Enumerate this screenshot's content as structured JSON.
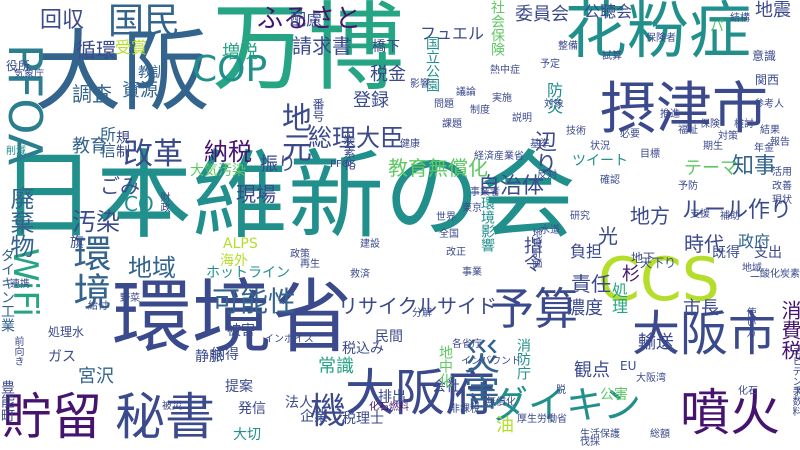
{
  "palette": {
    "dark_purple": "#46146e",
    "indigo": "#3b4a8c",
    "blue": "#33648e",
    "teal_blue": "#2b7e8e",
    "teal": "#21908c",
    "green": "#26a584",
    "light_green": "#5ec962",
    "lime": "#b5de2b"
  },
  "words": [
    {
      "text": "日本維新の会",
      "color": "teal"
    },
    {
      "text": "万博",
      "color": "green"
    },
    {
      "text": "大阪",
      "color": "blue"
    },
    {
      "text": "環境省",
      "color": "indigo"
    },
    {
      "text": "花粉症",
      "color": "teal"
    },
    {
      "text": "摂津市",
      "color": "indigo"
    },
    {
      "text": "CCS",
      "color": "lime"
    },
    {
      "text": "PFOA",
      "color": "teal_blue"
    },
    {
      "text": "大阪市",
      "color": "indigo"
    },
    {
      "text": "大阪府",
      "color": "indigo"
    },
    {
      "text": "貯留",
      "color": "dark_purple"
    },
    {
      "text": "秘書",
      "color": "indigo"
    },
    {
      "text": "噴火",
      "color": "dark_purple"
    },
    {
      "text": "予算",
      "color": "indigo"
    },
    {
      "text": "COP",
      "color": "teal"
    },
    {
      "text": "国民",
      "color": "blue"
    },
    {
      "text": "ダイキン",
      "color": "teal"
    },
    {
      "text": "環境",
      "color": "blue"
    },
    {
      "text": "WiFi",
      "color": "green"
    },
    {
      "text": "災害",
      "color": "blue"
    },
    {
      "text": "廃棄物",
      "color": "blue"
    },
    {
      "text": "地元",
      "color": "indigo"
    },
    {
      "text": "機",
      "color": "indigo"
    },
    {
      "text": "改革",
      "color": "indigo"
    },
    {
      "text": "可能性",
      "color": "blue"
    },
    {
      "text": "ふるさと",
      "color": "dark_purple"
    },
    {
      "text": "回収",
      "color": "indigo"
    },
    {
      "text": "総理大臣",
      "color": "indigo"
    },
    {
      "text": "地域",
      "color": "blue"
    },
    {
      "text": "納税",
      "color": "dark_purple"
    },
    {
      "text": "汚染",
      "color": "indigo"
    },
    {
      "text": "リサイクルサイド",
      "color": "indigo"
    },
    {
      "text": "ルール作り",
      "color": "indigo"
    },
    {
      "text": "自治体",
      "color": "indigo"
    },
    {
      "text": "教育無償化",
      "color": "light_green"
    },
    {
      "text": "CO",
      "color": "teal"
    },
    {
      "text": "責任",
      "color": "indigo"
    },
    {
      "text": "辺り",
      "color": "indigo"
    },
    {
      "text": "循環",
      "color": "indigo"
    },
    {
      "text": "ごみ",
      "color": "indigo"
    },
    {
      "text": "現場",
      "color": "indigo"
    },
    {
      "text": "時代",
      "color": "indigo"
    },
    {
      "text": "テーマ",
      "color": "light_green"
    },
    {
      "text": "地方",
      "color": "indigo"
    },
    {
      "text": "請求書",
      "color": "indigo"
    },
    {
      "text": "増税",
      "color": "green"
    },
    {
      "text": "調査",
      "color": "blue"
    },
    {
      "text": "知事",
      "color": "blue"
    },
    {
      "text": "光",
      "color": "indigo"
    },
    {
      "text": "宮沢",
      "color": "blue"
    },
    {
      "text": "輸送",
      "color": "indigo"
    },
    {
      "text": "市長",
      "color": "indigo"
    },
    {
      "text": "指令",
      "color": "indigo"
    },
    {
      "text": "消費税",
      "color": "dark_purple"
    },
    {
      "text": "観点",
      "color": "indigo"
    },
    {
      "text": "常識",
      "color": "green"
    },
    {
      "text": "振り",
      "color": "indigo"
    },
    {
      "text": "登録",
      "color": "indigo"
    },
    {
      "text": "資源",
      "color": "blue"
    },
    {
      "text": "教育",
      "color": "blue"
    },
    {
      "text": "委員会",
      "color": "indigo"
    },
    {
      "text": "税金",
      "color": "indigo"
    },
    {
      "text": "フュエル",
      "color": "indigo"
    },
    {
      "text": "社会保険",
      "color": "light_green"
    },
    {
      "text": "地震",
      "color": "indigo"
    },
    {
      "text": "公聴会",
      "color": "indigo"
    },
    {
      "text": "濃度",
      "color": "indigo"
    },
    {
      "text": "政府",
      "color": "blue"
    },
    {
      "text": "杉",
      "color": "dark_purple"
    },
    {
      "text": "大気汚染",
      "color": "light_green"
    },
    {
      "text": "受賞",
      "color": "lime"
    },
    {
      "text": "教訓",
      "color": "blue"
    },
    {
      "text": "配慮",
      "color": "indigo"
    },
    {
      "text": "橋下",
      "color": "indigo"
    },
    {
      "text": "所信",
      "color": "blue"
    },
    {
      "text": "規制",
      "color": "indigo"
    },
    {
      "text": "国立公園",
      "color": "teal"
    },
    {
      "text": "防災",
      "color": "teal"
    },
    {
      "text": "消防庁",
      "color": "teal"
    },
    {
      "text": "環境影響",
      "color": "teal"
    },
    {
      "text": "負担",
      "color": "indigo"
    },
    {
      "text": "処理",
      "color": "green"
    },
    {
      "text": "ダイキン工業",
      "color": "blue"
    },
    {
      "text": "豊能町",
      "color": "indigo"
    },
    {
      "text": "ホットライン",
      "color": "teal"
    },
    {
      "text": "ツイート",
      "color": "teal"
    },
    {
      "text": "ALPS",
      "color": "lime"
    },
    {
      "text": "ガス",
      "color": "indigo"
    },
    {
      "text": "旗",
      "color": "indigo"
    },
    {
      "text": "被害",
      "color": "indigo"
    },
    {
      "text": "提案",
      "color": "indigo"
    },
    {
      "text": "発信",
      "color": "indigo"
    },
    {
      "text": "大切",
      "color": "teal"
    },
    {
      "text": "税込み",
      "color": "indigo"
    },
    {
      "text": "税理士",
      "color": "indigo"
    },
    {
      "text": "企業",
      "color": "indigo"
    },
    {
      "text": "会社",
      "color": "indigo"
    },
    {
      "text": "民間",
      "color": "indigo"
    },
    {
      "text": "法人",
      "color": "indigo"
    },
    {
      "text": "公害",
      "color": "light_green"
    },
    {
      "text": "静脈",
      "color": "indigo"
    },
    {
      "text": "納得",
      "color": "indigo"
    },
    {
      "text": "排出",
      "color": "indigo"
    },
    {
      "text": "既得",
      "color": "indigo"
    },
    {
      "text": "支出",
      "color": "indigo"
    },
    {
      "text": "地中化",
      "color": "light_green"
    },
    {
      "text": "パ",
      "color": "light_green"
    },
    {
      "text": "役所",
      "color": "indigo"
    },
    {
      "text": "PFOS",
      "color": "indigo"
    },
    {
      "text": "インバウンド",
      "color": "indigo"
    },
    {
      "text": "インボイス",
      "color": "indigo"
    },
    {
      "text": "化石燃料",
      "color": "dark_purple"
    },
    {
      "text": "経済産業省",
      "color": "indigo"
    },
    {
      "text": "番号",
      "color": "indigo"
    },
    {
      "text": "炭素化",
      "color": "indigo"
    },
    {
      "text": "油",
      "color": "lime"
    },
    {
      "text": "海外",
      "color": "lime"
    },
    {
      "text": "EU",
      "color": "indigo"
    },
    {
      "text": "関西",
      "color": "indigo"
    },
    {
      "text": "意識",
      "color": "indigo"
    },
    {
      "text": "地下",
      "color": "indigo"
    },
    {
      "text": "天下り",
      "color": "indigo"
    },
    {
      "text": "前向き",
      "color": "indigo"
    },
    {
      "text": "使い方",
      "color": "indigo"
    },
    {
      "text": "財政",
      "color": "indigo"
    },
    {
      "text": "野菜",
      "color": "indigo"
    },
    {
      "text": "参考人",
      "color": "indigo"
    },
    {
      "text": "支援",
      "color": "indigo"
    },
    {
      "text": "水道",
      "color": "indigo"
    },
    {
      "text": "東京",
      "color": "indigo"
    },
    {
      "text": "全国",
      "color": "indigo"
    },
    {
      "text": "世界",
      "color": "indigo"
    },
    {
      "text": "反対",
      "color": "indigo"
    },
    {
      "text": "熱中症",
      "color": "indigo"
    },
    {
      "text": "生活保護",
      "color": "indigo"
    },
    {
      "text": "厚生労働省",
      "color": "indigo"
    },
    {
      "text": "二酸化炭素",
      "color": "indigo"
    },
    {
      "text": "処理水",
      "color": "indigo"
    },
    {
      "text": "年金",
      "color": "indigo"
    },
    {
      "text": "分解",
      "color": "indigo"
    },
    {
      "text": "化石",
      "color": "indigo"
    },
    {
      "text": "削減",
      "color": "teal"
    },
    {
      "text": "気象庁",
      "color": "indigo"
    },
    {
      "text": "地域計画",
      "color": "indigo"
    },
    {
      "text": "事業者",
      "color": "indigo"
    },
    {
      "text": "手数料",
      "color": "indigo"
    },
    {
      "text": "非課税",
      "color": "indigo"
    },
    {
      "text": "各省庁",
      "color": "indigo"
    },
    {
      "text": "技術",
      "color": "indigo"
    },
    {
      "text": "試算",
      "color": "indigo"
    },
    {
      "text": "期生",
      "color": "indigo"
    },
    {
      "text": "保険者",
      "color": "indigo"
    },
    {
      "text": "エビデンス",
      "color": "indigo"
    },
    {
      "text": "無償化",
      "color": "indigo"
    },
    {
      "text": "伐採",
      "color": "indigo"
    },
    {
      "text": "大阪湾",
      "color": "indigo"
    },
    {
      "text": "脱",
      "color": "indigo"
    },
    {
      "text": "給付",
      "color": "indigo"
    },
    {
      "text": "連携",
      "color": "indigo"
    },
    {
      "text": "地域",
      "color": "indigo"
    },
    {
      "text": "総額",
      "color": "indigo"
    },
    {
      "text": "再生",
      "color": "indigo"
    },
    {
      "text": "結構",
      "color": "indigo"
    },
    {
      "text": "被災",
      "color": "indigo"
    },
    {
      "text": "予防",
      "color": "indigo"
    },
    {
      "text": "補助",
      "color": "indigo"
    },
    {
      "text": "整備",
      "color": "indigo"
    },
    {
      "text": "確認",
      "color": "indigo"
    },
    {
      "text": "福祉",
      "color": "indigo"
    },
    {
      "text": "研究",
      "color": "indigo"
    },
    {
      "text": "改正",
      "color": "indigo"
    },
    {
      "text": "事業",
      "color": "indigo"
    },
    {
      "text": "救済",
      "color": "indigo"
    },
    {
      "text": "政策",
      "color": "indigo"
    },
    {
      "text": "基準",
      "color": "indigo"
    },
    {
      "text": "健康",
      "color": "indigo"
    },
    {
      "text": "建設",
      "color": "indigo"
    },
    {
      "text": "予定",
      "color": "indigo"
    },
    {
      "text": "課題",
      "color": "indigo"
    },
    {
      "text": "制度",
      "color": "indigo"
    },
    {
      "text": "説明",
      "color": "indigo"
    },
    {
      "text": "影響",
      "color": "indigo"
    },
    {
      "text": "議論",
      "color": "indigo"
    },
    {
      "text": "実施",
      "color": "indigo"
    },
    {
      "text": "対象",
      "color": "indigo"
    },
    {
      "text": "状況",
      "color": "indigo"
    },
    {
      "text": "問題",
      "color": "indigo"
    },
    {
      "text": "目標",
      "color": "indigo"
    },
    {
      "text": "必要",
      "color": "indigo"
    },
    {
      "text": "推進",
      "color": "indigo"
    },
    {
      "text": "保険",
      "color": "indigo"
    },
    {
      "text": "対策",
      "color": "indigo"
    },
    {
      "text": "検討",
      "color": "indigo"
    },
    {
      "text": "結果",
      "color": "indigo"
    },
    {
      "text": "報告",
      "color": "indigo"
    },
    {
      "text": "活用",
      "color": "indigo"
    },
    {
      "text": "改善",
      "color": "indigo"
    },
    {
      "text": "現状",
      "color": "indigo"
    }
  ]
}
